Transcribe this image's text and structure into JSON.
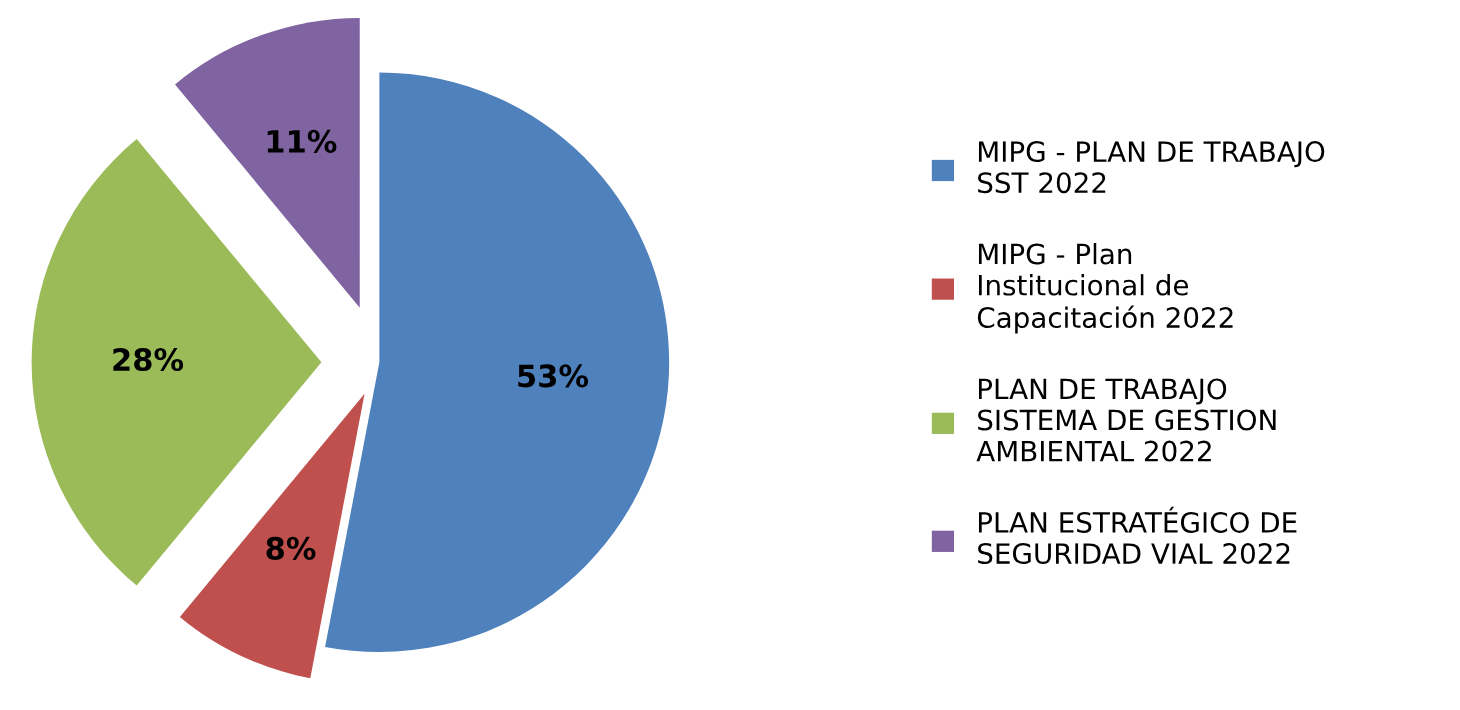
{
  "chart_data": {
    "type": "pie",
    "categories": [
      "MIPG - PLAN DE TRABAJO SST 2022",
      "MIPG - Plan Institucional de Capacitación 2022",
      "PLAN DE TRABAJO SISTEMA DE GESTION AMBIENTAL 2022",
      "PLAN ESTRATÉGICO DE SEGURIDAD VIAL 2022"
    ],
    "values": [
      53,
      8,
      28,
      11
    ],
    "colors": [
      "#4f81bd",
      "#c0504d",
      "#9bbb59",
      "#8064a2"
    ],
    "value_labels": [
      "53%",
      "8%",
      "28%",
      "11%"
    ],
    "legend": "right"
  }
}
